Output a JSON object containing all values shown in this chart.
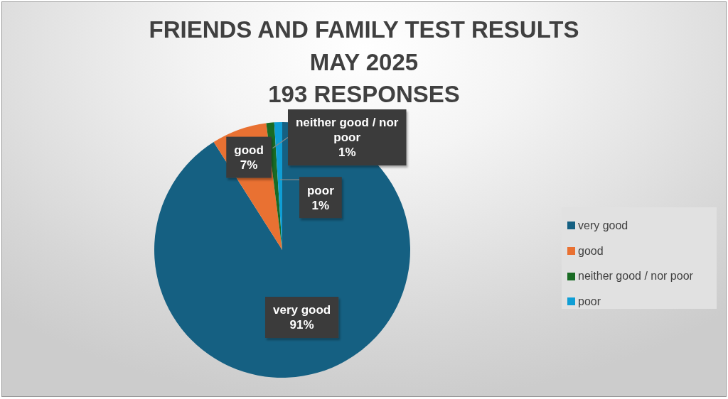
{
  "chart_data": {
    "type": "pie",
    "title": "FRIENDS AND FAMILY TEST RESULTS\nMAY 2025\n193 RESPONSES",
    "categories": [
      "very good",
      "good",
      "neither good / nor poor",
      "poor"
    ],
    "values": [
      91,
      7,
      1,
      1
    ],
    "colors": [
      "#156082",
      "#e97132",
      "#196b24",
      "#0f9ed5"
    ],
    "value_labels": [
      "91%",
      "7%",
      "1%",
      "1%"
    ],
    "legend": "right"
  }
}
